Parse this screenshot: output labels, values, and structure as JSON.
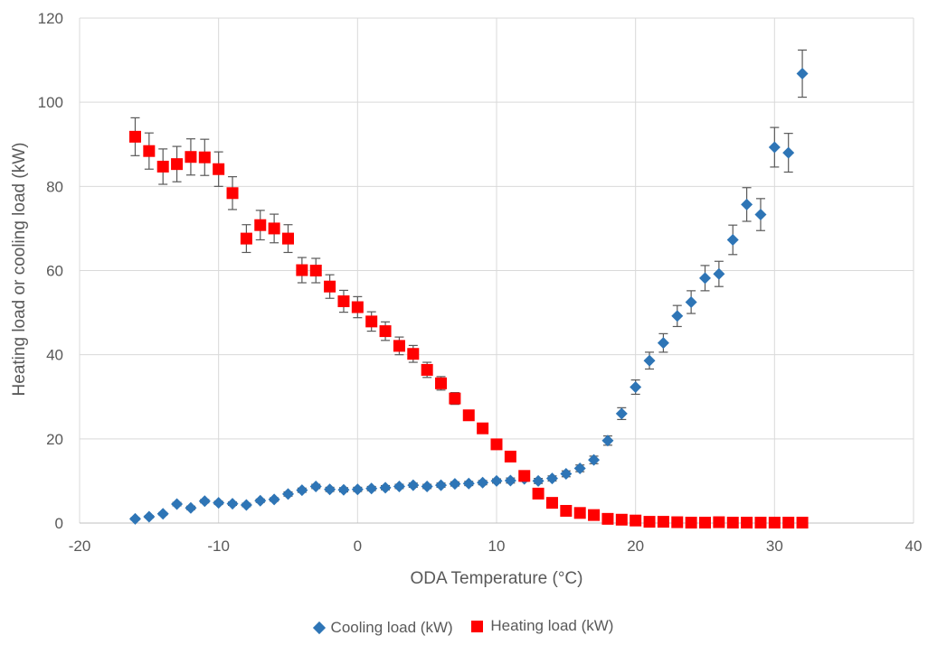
{
  "chart_data": {
    "type": "scatter",
    "xlabel": "ODA Temperature (°C)",
    "ylabel": "Heating load or cooling load (kW)",
    "xlim": [
      -20,
      40
    ],
    "ylim": [
      0,
      120
    ],
    "x_ticks": [
      -20,
      -10,
      0,
      10,
      20,
      30,
      40
    ],
    "y_ticks": [
      0,
      20,
      40,
      60,
      80,
      100,
      120
    ],
    "grid": true,
    "legend_position": "bottom",
    "series": [
      {
        "name": "Cooling load (kW)",
        "marker": "diamond",
        "color": "#2E75B6",
        "points": [
          {
            "x": -16,
            "y": 1.0,
            "err": 0.3
          },
          {
            "x": -15,
            "y": 1.5,
            "err": 0.3
          },
          {
            "x": -14,
            "y": 2.2,
            "err": 0.3
          },
          {
            "x": -13,
            "y": 4.5,
            "err": 0.4
          },
          {
            "x": -12,
            "y": 3.6,
            "err": 0.4
          },
          {
            "x": -11,
            "y": 5.2,
            "err": 0.4
          },
          {
            "x": -10,
            "y": 4.8,
            "err": 0.4
          },
          {
            "x": -9,
            "y": 4.6,
            "err": 0.4
          },
          {
            "x": -8,
            "y": 4.3,
            "err": 0.4
          },
          {
            "x": -7,
            "y": 5.3,
            "err": 0.4
          },
          {
            "x": -6,
            "y": 5.6,
            "err": 0.4
          },
          {
            "x": -5,
            "y": 6.9,
            "err": 0.5
          },
          {
            "x": -4,
            "y": 7.8,
            "err": 0.5
          },
          {
            "x": -3,
            "y": 8.7,
            "err": 0.5
          },
          {
            "x": -2,
            "y": 8.0,
            "err": 0.5
          },
          {
            "x": -1,
            "y": 7.9,
            "err": 0.5
          },
          {
            "x": 0,
            "y": 8.0,
            "err": 0.5
          },
          {
            "x": 1,
            "y": 8.2,
            "err": 0.5
          },
          {
            "x": 2,
            "y": 8.4,
            "err": 0.5
          },
          {
            "x": 3,
            "y": 8.7,
            "err": 0.5
          },
          {
            "x": 4,
            "y": 9.0,
            "err": 0.5
          },
          {
            "x": 5,
            "y": 8.7,
            "err": 0.5
          },
          {
            "x": 6,
            "y": 9.0,
            "err": 0.5
          },
          {
            "x": 7,
            "y": 9.3,
            "err": 0.5
          },
          {
            "x": 8,
            "y": 9.4,
            "err": 0.5
          },
          {
            "x": 9,
            "y": 9.6,
            "err": 0.5
          },
          {
            "x": 10,
            "y": 10.0,
            "err": 0.5
          },
          {
            "x": 11,
            "y": 10.1,
            "err": 0.6
          },
          {
            "x": 12,
            "y": 10.5,
            "err": 0.6
          },
          {
            "x": 13,
            "y": 10.0,
            "err": 0.6
          },
          {
            "x": 14,
            "y": 10.6,
            "err": 0.6
          },
          {
            "x": 15,
            "y": 11.7,
            "err": 0.7
          },
          {
            "x": 16,
            "y": 13.0,
            "err": 0.8
          },
          {
            "x": 17,
            "y": 15.0,
            "err": 0.9
          },
          {
            "x": 18,
            "y": 19.6,
            "err": 1.1
          },
          {
            "x": 19,
            "y": 26.0,
            "err": 1.4
          },
          {
            "x": 20,
            "y": 32.3,
            "err": 1.7
          },
          {
            "x": 21,
            "y": 38.6,
            "err": 2.0
          },
          {
            "x": 22,
            "y": 42.8,
            "err": 2.2
          },
          {
            "x": 23,
            "y": 49.2,
            "err": 2.5
          },
          {
            "x": 24,
            "y": 52.5,
            "err": 2.7
          },
          {
            "x": 25,
            "y": 58.2,
            "err": 3.0
          },
          {
            "x": 26,
            "y": 59.2,
            "err": 3.0
          },
          {
            "x": 27,
            "y": 67.3,
            "err": 3.5
          },
          {
            "x": 28,
            "y": 75.7,
            "err": 4.0
          },
          {
            "x": 29,
            "y": 73.3,
            "err": 3.8
          },
          {
            "x": 30,
            "y": 89.3,
            "err": 4.7
          },
          {
            "x": 31,
            "y": 88.0,
            "err": 4.6
          },
          {
            "x": 32,
            "y": 106.8,
            "err": 5.6
          }
        ]
      },
      {
        "name": "Heating load (kW)",
        "marker": "square",
        "color": "#FF0000",
        "points": [
          {
            "x": -16,
            "y": 91.8,
            "err": 4.5
          },
          {
            "x": -15,
            "y": 88.4,
            "err": 4.3
          },
          {
            "x": -14,
            "y": 84.7,
            "err": 4.2
          },
          {
            "x": -13,
            "y": 85.3,
            "err": 4.2
          },
          {
            "x": -12,
            "y": 87.0,
            "err": 4.3
          },
          {
            "x": -11,
            "y": 86.9,
            "err": 4.3
          },
          {
            "x": -10,
            "y": 84.1,
            "err": 4.1
          },
          {
            "x": -9,
            "y": 78.4,
            "err": 3.9
          },
          {
            "x": -8,
            "y": 67.6,
            "err": 3.3
          },
          {
            "x": -7,
            "y": 70.8,
            "err": 3.5
          },
          {
            "x": -6,
            "y": 70.0,
            "err": 3.4
          },
          {
            "x": -5,
            "y": 67.6,
            "err": 3.3
          },
          {
            "x": -4,
            "y": 60.1,
            "err": 3.0
          },
          {
            "x": -3,
            "y": 60.0,
            "err": 2.9
          },
          {
            "x": -2,
            "y": 56.2,
            "err": 2.8
          },
          {
            "x": -1,
            "y": 52.7,
            "err": 2.6
          },
          {
            "x": 0,
            "y": 51.3,
            "err": 2.5
          },
          {
            "x": 1,
            "y": 47.9,
            "err": 2.3
          },
          {
            "x": 2,
            "y": 45.6,
            "err": 2.2
          },
          {
            "x": 3,
            "y": 42.1,
            "err": 2.1
          },
          {
            "x": 4,
            "y": 40.2,
            "err": 2.0
          },
          {
            "x": 5,
            "y": 36.4,
            "err": 1.8
          },
          {
            "x": 6,
            "y": 33.2,
            "err": 1.6
          },
          {
            "x": 7,
            "y": 29.6,
            "err": 1.4
          },
          {
            "x": 8,
            "y": 25.6,
            "err": 1.0
          },
          {
            "x": 9,
            "y": 22.5,
            "err": 0.8
          },
          {
            "x": 10,
            "y": 18.7,
            "err": 0.7
          },
          {
            "x": 11,
            "y": 15.8,
            "err": 0.6
          },
          {
            "x": 12,
            "y": 11.2,
            "err": 0.5
          },
          {
            "x": 13,
            "y": 7.0,
            "err": 0.4
          },
          {
            "x": 14,
            "y": 4.8,
            "err": 0.3
          },
          {
            "x": 15,
            "y": 2.9,
            "err": 0.2
          },
          {
            "x": 16,
            "y": 2.4,
            "err": 0.2
          },
          {
            "x": 17,
            "y": 1.9,
            "err": 0.2
          },
          {
            "x": 18,
            "y": 1.0,
            "err": 0.1
          },
          {
            "x": 19,
            "y": 0.8,
            "err": 0.1
          },
          {
            "x": 20,
            "y": 0.6,
            "err": 0.1
          },
          {
            "x": 21,
            "y": 0.3,
            "err": 0.1
          },
          {
            "x": 22,
            "y": 0.3,
            "err": 0.1
          },
          {
            "x": 23,
            "y": 0.2,
            "err": 0.1
          },
          {
            "x": 24,
            "y": 0.1,
            "err": 0.1
          },
          {
            "x": 25,
            "y": 0.1,
            "err": 0.1
          },
          {
            "x": 26,
            "y": 0.2,
            "err": 0.1
          },
          {
            "x": 27,
            "y": 0.1,
            "err": 0.1
          },
          {
            "x": 28,
            "y": 0.1,
            "err": 0.1
          },
          {
            "x": 29,
            "y": 0.1,
            "err": 0.1
          },
          {
            "x": 30,
            "y": 0.1,
            "err": 0.1
          },
          {
            "x": 31,
            "y": 0.1,
            "err": 0.1
          },
          {
            "x": 32,
            "y": 0.1,
            "err": 0.1
          }
        ]
      }
    ]
  },
  "legend": {
    "cooling_label": "Cooling load (kW)",
    "heating_label": "Heating load (kW)"
  }
}
